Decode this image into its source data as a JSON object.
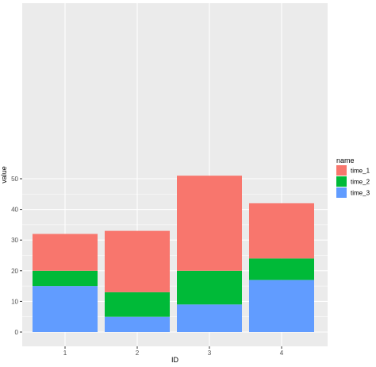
{
  "chart_data": {
    "type": "bar",
    "stacked": true,
    "categories": [
      "1",
      "2",
      "3",
      "4"
    ],
    "series": [
      {
        "name": "time_3",
        "color": "#619CFF",
        "values": [
          15,
          5,
          9,
          17
        ]
      },
      {
        "name": "time_2",
        "color": "#00BA38",
        "values": [
          5,
          8,
          11,
          7
        ]
      },
      {
        "name": "time_1",
        "color": "#F8766D",
        "values": [
          12,
          20,
          31,
          18
        ]
      }
    ],
    "xlabel": "ID",
    "ylabel": "value",
    "ylim": [
      0,
      51
    ],
    "yticks": [
      0,
      10,
      20,
      30,
      40,
      50
    ],
    "grid": true,
    "panel_background": "#EBEBEB",
    "grid_color": "#FFFFFF",
    "legend": {
      "title": "name",
      "placement": "right",
      "entries": [
        "time_1",
        "time_2",
        "time_3"
      ]
    }
  }
}
